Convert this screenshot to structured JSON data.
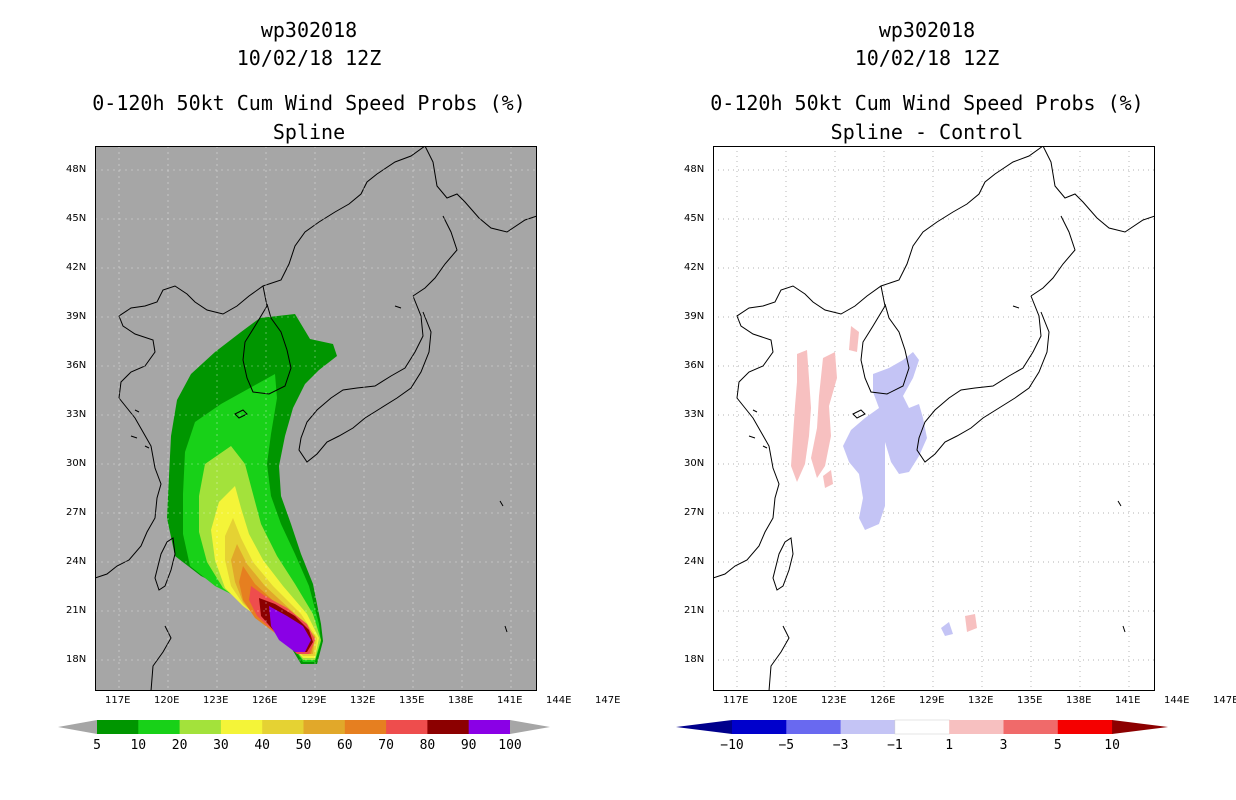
{
  "left": {
    "storm_id": "wp302018",
    "date": "10/02/18 12Z",
    "product": "0-120h 50kt Cum Wind Speed Probs (%)",
    "method": "Spline",
    "map_background": "#a6a6a6",
    "colorbar": {
      "labels": [
        "5",
        "10",
        "20",
        "30",
        "40",
        "50",
        "60",
        "70",
        "80",
        "90",
        "100"
      ],
      "colors": [
        "#009600",
        "#18d118",
        "#a3e23b",
        "#f4f438",
        "#e5d233",
        "#e1a82a",
        "#e67f20",
        "#ee4d4d",
        "#8c0000",
        "#8a00e6"
      ],
      "end_color": "#a6a6a6"
    }
  },
  "right": {
    "storm_id": "wp302018",
    "date": "10/02/18 12Z",
    "product": "0-120h 50kt Cum Wind Speed Probs (%)",
    "method": "Spline - Control",
    "map_background": "#ffffff",
    "colorbar": {
      "labels": [
        "−10",
        "−5",
        "−3",
        "−1",
        "1",
        "3",
        "5",
        "10"
      ],
      "colors": [
        "#0000cc",
        "#6969f0",
        "#c4c4f5",
        "#ffffff",
        "#f7c0c0",
        "#f06a6a",
        "#f50000"
      ],
      "low_color": "#00008c",
      "high_color": "#8c0000"
    }
  },
  "axes": {
    "lat_labels": [
      "48N",
      "45N",
      "42N",
      "39N",
      "36N",
      "33N",
      "30N",
      "27N",
      "24N",
      "21N",
      "18N"
    ],
    "lon_labels": [
      "117E",
      "120E",
      "123E",
      "126E",
      "129E",
      "132E",
      "135E",
      "138E",
      "141E",
      "144E",
      "147E"
    ]
  }
}
